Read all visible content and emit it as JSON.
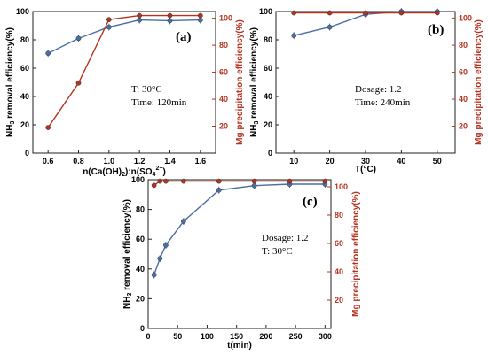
{
  "colors": {
    "blue": "#4a6fa5",
    "red": "#b5321f"
  },
  "chart_data": [
    {
      "type": "line",
      "panel_label": "(a)",
      "xlabel": "n(Ca(OH)",
      "xlabel_sub1": "2",
      "xlabel_mid": "):n(SO",
      "xlabel_sub2": "4",
      "xlabel_sup": "2−",
      "xlabel_end": ")",
      "ylabel_left": "NH3 removal efficiency(%)",
      "ylabel_left_parts": [
        "NH",
        "3",
        " removal efficiency(%)"
      ],
      "ylabel_right": "Mg precipitation efficiency(%)",
      "xlim": [
        0.5,
        1.7
      ],
      "ylim_left": [
        0,
        100
      ],
      "ylim_right": [
        0,
        105
      ],
      "x_ticks": [
        "0.6",
        "0.8",
        "1.0",
        "1.2",
        "1.4",
        "1.6"
      ],
      "y_ticks_left": [
        "0",
        "20",
        "40",
        "60",
        "80",
        "100"
      ],
      "y_ticks_right": [
        "20",
        "40",
        "60",
        "80",
        "100"
      ],
      "annotations": [
        "T: 30°C",
        "Time: 120min"
      ],
      "series": [
        {
          "axis": "left",
          "color": "blue",
          "x": [
            0.6,
            0.8,
            1.0,
            1.2,
            1.4,
            1.6
          ],
          "y": [
            70.5,
            81,
            89,
            94,
            93.5,
            94
          ]
        },
        {
          "axis": "right",
          "color": "red",
          "x": [
            0.6,
            0.8,
            1.0,
            1.2,
            1.4,
            1.6
          ],
          "y": [
            19,
            52,
            99,
            102,
            102,
            102
          ]
        }
      ]
    },
    {
      "type": "line",
      "panel_label": "(b)",
      "xlabel": "T(°C)",
      "ylabel_left": "NH3 removal efficiency(%)",
      "ylabel_left_parts": [
        "NH",
        "3",
        " removal efficiency(%)"
      ],
      "ylabel_right": "Mg precipitation efficiency(%)",
      "xlim": [
        5,
        55
      ],
      "ylim_left": [
        0,
        100
      ],
      "ylim_right": [
        0,
        105
      ],
      "x_ticks": [
        "10",
        "20",
        "30",
        "40",
        "50"
      ],
      "y_ticks_left": [
        "0",
        "20",
        "40",
        "60",
        "80",
        "100"
      ],
      "y_ticks_right": [
        "20",
        "40",
        "60",
        "80",
        "100"
      ],
      "annotations": [
        "Dosage: 1.2",
        "Time: 240min"
      ],
      "series": [
        {
          "axis": "left",
          "color": "blue",
          "x": [
            10,
            20,
            30,
            40,
            50
          ],
          "y": [
            83,
            89,
            98,
            100,
            100
          ]
        },
        {
          "axis": "right",
          "color": "red",
          "x": [
            10,
            20,
            30,
            40,
            50
          ],
          "y": [
            104,
            104,
            104,
            104,
            104
          ]
        }
      ]
    },
    {
      "type": "line",
      "panel_label": "(c)",
      "xlabel": "t(min)",
      "ylabel_left": "NH3 removal efficiency(%)",
      "ylabel_left_parts": [
        "NH",
        "3",
        " removal efficiency(%)"
      ],
      "ylabel_right": "Mg precipitation efficiency(%)",
      "xlim": [
        0,
        310
      ],
      "ylim_left": [
        0,
        100
      ],
      "ylim_right": [
        0,
        105
      ],
      "x_ticks": [
        "0",
        "50",
        "100",
        "150",
        "200",
        "250",
        "300"
      ],
      "y_ticks_left": [
        "0",
        "20",
        "40",
        "60",
        "80",
        "100"
      ],
      "y_ticks_right": [
        "20",
        "40",
        "60",
        "80",
        "100"
      ],
      "annotations": [
        "Dosage: 1.2",
        "T: 30°C"
      ],
      "series": [
        {
          "axis": "left",
          "color": "blue",
          "x": [
            10,
            20,
            30,
            60,
            120,
            180,
            240,
            300
          ],
          "y": [
            36,
            47,
            56,
            72,
            93,
            96,
            97,
            97
          ]
        },
        {
          "axis": "right",
          "color": "red",
          "x": [
            10,
            20,
            30,
            60,
            120,
            180,
            240,
            300
          ],
          "y": [
            101,
            104,
            104,
            104,
            104,
            104,
            104,
            104
          ]
        }
      ]
    }
  ]
}
